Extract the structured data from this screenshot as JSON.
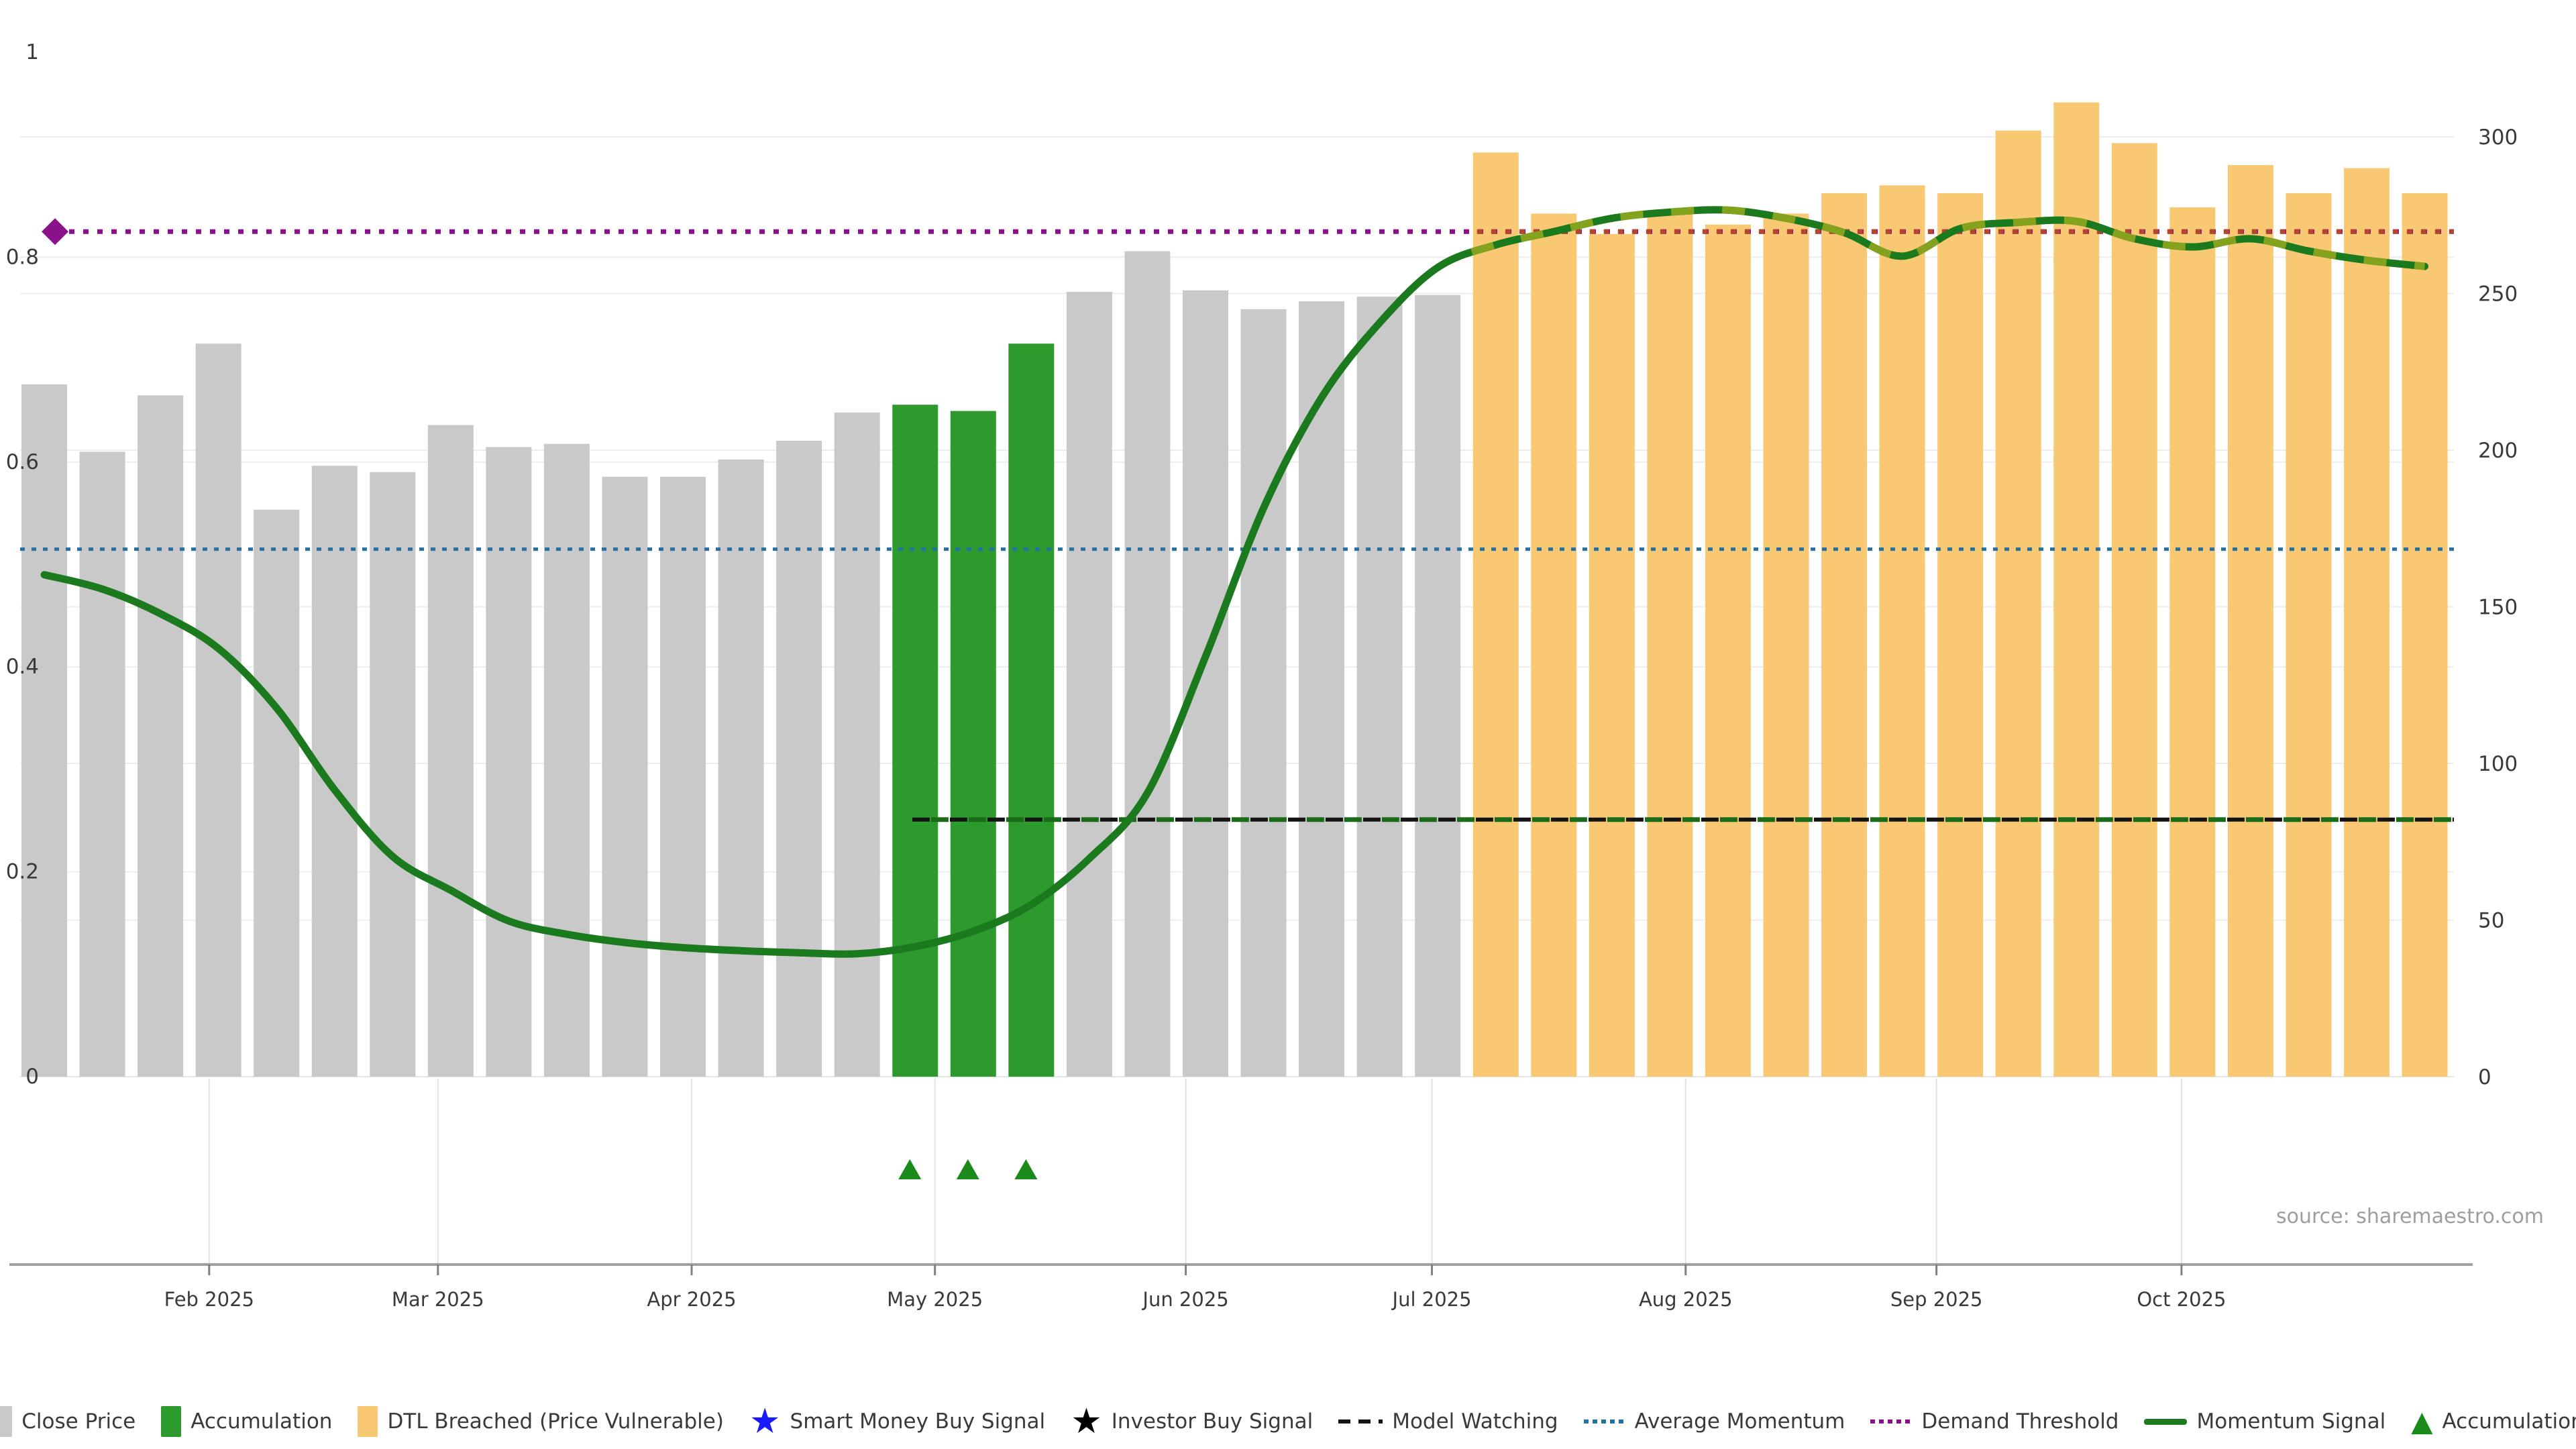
{
  "source_note": "source: sharemaestro.com",
  "colors": {
    "close_price": "#c9c9c9",
    "accumulation_bar": "#2d9a2d",
    "dtl_breached_bar": "#f9c873",
    "momentum_line": "#1b7a1e",
    "momentum_line_alt": "#85a21f",
    "average_momentum": "#2471a3",
    "demand_threshold": "#8b118b",
    "price_vulnerable": "#b4452e",
    "model_watching": "#141414",
    "model_watching_alt": "#1a6b1a",
    "smart_money_star": "#1a1aff",
    "investor_star": "#000000",
    "accumulation_marker": "#1a8a1a",
    "grid": "#ededed",
    "axis": "#a0a0a0",
    "tick_text": "#3a3a3a",
    "source_text": "#9e9e9e"
  },
  "chart_data": {
    "type": "bar",
    "title": "",
    "x_axis": {
      "tick_labels": [
        "Feb 2025",
        "Mar 2025",
        "Apr 2025",
        "May 2025",
        "Jun 2025",
        "Jul 2025",
        "Aug 2025",
        "Sep 2025",
        "Oct 2025"
      ],
      "tick_positions_weeks": [
        2.84,
        6.78,
        11.15,
        15.34,
        19.66,
        23.9,
        28.27,
        32.59,
        36.81
      ]
    },
    "left_axis": {
      "tick_labels": [
        "1",
        "0.8",
        "0.6",
        "0.4",
        "0.2",
        "0"
      ],
      "tick_values": [
        1,
        0.8,
        0.6,
        0.4,
        0.2,
        0
      ],
      "range": [
        0,
        1
      ],
      "gridline_values": [
        0.8,
        0.6,
        0.4,
        0.2
      ]
    },
    "right_axis": {
      "tick_labels": [
        "300",
        "250",
        "200",
        "150",
        "100",
        "50",
        "0"
      ],
      "tick_values": [
        300,
        250,
        200,
        150,
        100,
        50,
        0
      ],
      "range": [
        0,
        300
      ],
      "gridline_values": [
        300,
        250,
        200,
        150,
        100,
        50
      ]
    },
    "bars": {
      "series_name": "Close Price",
      "unit_axis": "right",
      "prices": [
        221,
        199.5,
        217.5,
        234,
        181,
        195,
        193,
        208,
        201,
        202,
        191.5,
        191.5,
        197,
        203,
        212,
        214.5,
        212.5,
        234,
        250.5,
        263.5,
        251,
        245,
        247.5,
        249,
        249.5,
        295,
        275.5,
        269,
        276.5,
        272,
        275.5,
        282,
        284.5,
        282,
        302,
        311,
        298,
        277.5,
        291,
        282,
        290,
        282
      ],
      "accumulation_weeks": [
        15,
        16,
        17
      ],
      "dtl_breached_from_week": 25
    },
    "momentum_signal": {
      "series_name": "Momentum Signal",
      "unit_axis": "left",
      "values": [
        0.49,
        0.476,
        0.452,
        0.418,
        0.36,
        0.28,
        0.215,
        0.182,
        0.152,
        0.139,
        0.131,
        0.126,
        0.123,
        0.121,
        0.12,
        0.127,
        0.142,
        0.168,
        0.213,
        0.277,
        0.41,
        0.555,
        0.663,
        0.736,
        0.79,
        0.812,
        0.825,
        0.838,
        0.844,
        0.846,
        0.838,
        0.824,
        0.801,
        0.828,
        0.834,
        0.835,
        0.818,
        0.81,
        0.818,
        0.806,
        0.797,
        0.791
      ],
      "two_tone_from_week": 24.55
    },
    "reference_lines": {
      "average_momentum": {
        "label": "Average Momentum",
        "value": 0.515
      },
      "demand_threshold": {
        "label": "Demand Threshold",
        "value": 0.825,
        "start_week": 0.185,
        "marker": "diamond"
      },
      "price_vulnerable": {
        "label": "DTL Breached (Price Vulnerable)",
        "value": 0.825,
        "start_week": 24.55
      },
      "model_watching": {
        "label": "Model Watching",
        "value": 0.251,
        "start_week": 14.95
      }
    },
    "accumulation_markers": {
      "label": "Accumulation",
      "weeks": [
        15,
        16,
        17
      ]
    },
    "legend_position": "bottom-center",
    "grid": "on"
  },
  "legend": {
    "items": [
      {
        "label": "Close Price",
        "marker": "swatch",
        "color_key": "close_price"
      },
      {
        "label": "Accumulation",
        "marker": "swatch",
        "color_key": "accumulation_bar"
      },
      {
        "label": "DTL Breached (Price Vulnerable)",
        "marker": "swatch",
        "color_key": "dtl_breached_bar"
      },
      {
        "label": "Smart Money Buy Signal",
        "marker": "star",
        "color_key": "smart_money_star"
      },
      {
        "label": "Investor Buy Signal",
        "marker": "star",
        "color_key": "investor_star"
      },
      {
        "label": "Model Watching",
        "marker": "dashed_line",
        "color_key": "model_watching"
      },
      {
        "label": "Average Momentum",
        "marker": "dotted_line",
        "color_key": "average_momentum"
      },
      {
        "label": "Demand Threshold",
        "marker": "dotted_line",
        "color_key": "demand_threshold"
      },
      {
        "label": "Momentum Signal",
        "marker": "solid_line",
        "color_key": "momentum_line"
      },
      {
        "label": "Accumulation",
        "marker": "triangle",
        "color_key": "accumulation_marker"
      }
    ]
  }
}
